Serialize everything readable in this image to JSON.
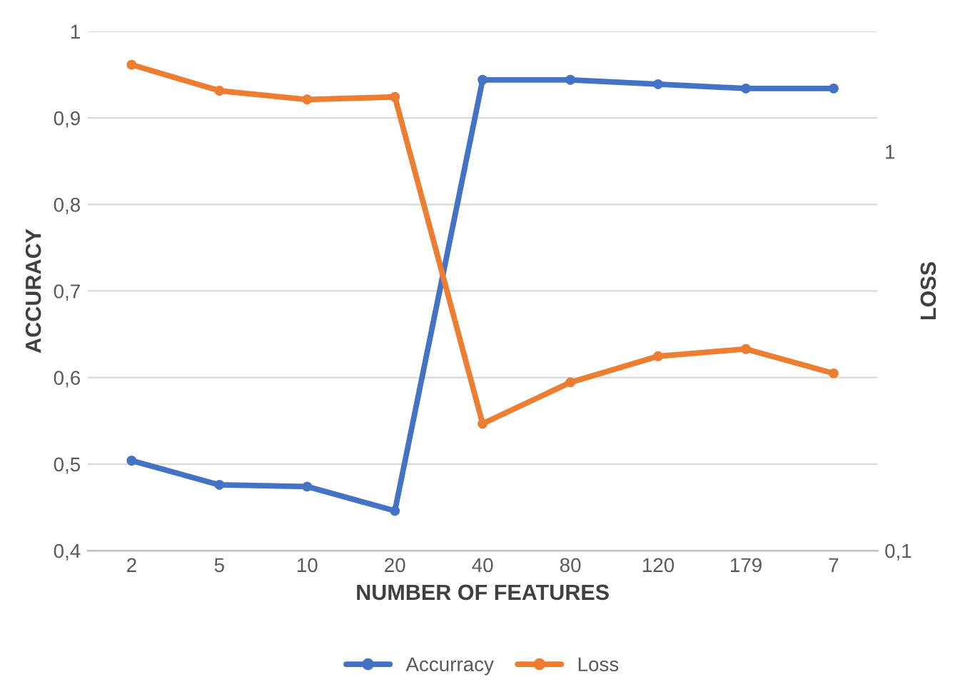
{
  "chart_data": {
    "type": "line",
    "xlabel": "NUMBER OF FEATURES",
    "ylabel": "ACCURACY",
    "y2label": "LOSS",
    "categories": [
      "2",
      "5",
      "10",
      "20",
      "40",
      "80",
      "120",
      "179",
      "7"
    ],
    "series": [
      {
        "name": "Accurracy",
        "color": "#4472c4",
        "values": [
          0.504,
          0.476,
          0.474,
          0.446,
          0.944,
          0.944,
          0.939,
          0.934,
          0.934
        ]
      },
      {
        "name": "Loss",
        "color": "#ed7d31",
        "axis": "y2",
        "values": [
          1.65,
          1.42,
          1.35,
          1.37,
          0.208,
          0.264,
          0.307,
          0.32,
          0.278
        ]
      }
    ],
    "ylim": [
      0.4,
      1
    ],
    "yticks": [
      {
        "value": 0.4,
        "label": "0,4"
      },
      {
        "value": 0.5,
        "label": "0,5"
      },
      {
        "value": 0.6,
        "label": "0,6"
      },
      {
        "value": 0.7,
        "label": "0,7"
      },
      {
        "value": 0.8,
        "label": "0,8"
      },
      {
        "value": 0.9,
        "label": "0,9"
      },
      1
    ],
    "y2lim": [
      0.1,
      2
    ],
    "y2ticks": [
      {
        "value": 0.1,
        "label": "0,1"
      },
      1
    ],
    "log": "y2",
    "grid": "y",
    "legend": "bottom",
    "marker": "circle",
    "line_style": "solid"
  }
}
